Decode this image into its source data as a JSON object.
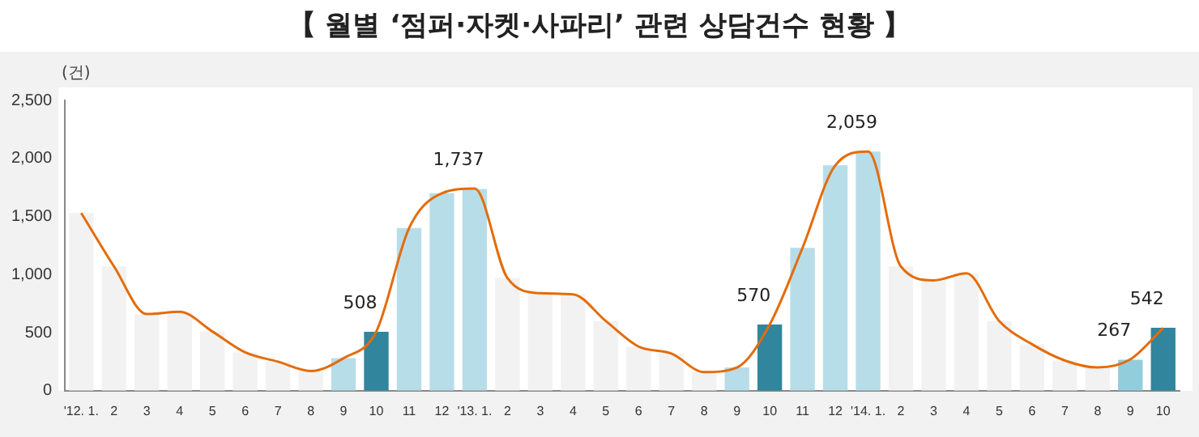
{
  "chart_data": {
    "type": "bar",
    "title": "【 월별 ‘점퍼·자켓·사파리’ 관련 상담건수 현황 】",
    "ylabel": "(건)",
    "categories": [
      "'12. 1.",
      "2",
      "3",
      "4",
      "5",
      "6",
      "7",
      "8",
      "9",
      "10",
      "11",
      "12",
      "'13. 1.",
      "2",
      "3",
      "4",
      "5",
      "6",
      "7",
      "8",
      "9",
      "10",
      "11",
      "12",
      "'14. 1.",
      "2",
      "3",
      "4",
      "5",
      "6",
      "7",
      "8",
      "9",
      "10"
    ],
    "series": [
      {
        "colors": [
          "#f2f2f2",
          "#f2f2f2",
          "#f2f2f2",
          "#f2f2f2",
          "#f2f2f2",
          "#f2f2f2",
          "#f2f2f2",
          "#f2f2f2",
          "#b7dde8",
          "#31859c",
          "#b7dde8",
          "#b7dde8",
          "#b7dde8",
          "#f2f2f2",
          "#f2f2f2",
          "#f2f2f2",
          "#f2f2f2",
          "#f2f2f2",
          "#f2f2f2",
          "#f2f2f2",
          "#b7dde8",
          "#31859c",
          "#b7dde8",
          "#b7dde8",
          "#b7dde8",
          "#f2f2f2",
          "#f2f2f2",
          "#f2f2f2",
          "#f2f2f2",
          "#f2f2f2",
          "#f2f2f2",
          "#f2f2f2",
          "#92cddc",
          "#31859c"
        ],
        "values": [
          1530,
          1070,
          660,
          680,
          510,
          330,
          250,
          170,
          280,
          508,
          1400,
          1700,
          1737,
          970,
          840,
          830,
          600,
          380,
          320,
          160,
          200,
          570,
          1230,
          1940,
          2059,
          1070,
          950,
          1010,
          600,
          400,
          260,
          200,
          267,
          542
        ],
        "value_labels": [
          null,
          null,
          null,
          null,
          null,
          null,
          null,
          null,
          null,
          "508",
          null,
          null,
          "1,737",
          null,
          null,
          null,
          null,
          null,
          null,
          null,
          null,
          "570",
          null,
          null,
          "2,059",
          null,
          null,
          null,
          null,
          null,
          null,
          null,
          "267",
          "542"
        ]
      },
      {
        "type": "line",
        "color": "#e46c0a",
        "values": [
          1530,
          1070,
          660,
          680,
          510,
          330,
          250,
          170,
          280,
          510,
          1400,
          1700,
          1740,
          970,
          840,
          830,
          600,
          380,
          320,
          160,
          200,
          570,
          1230,
          1940,
          2060,
          1070,
          950,
          1010,
          600,
          400,
          260,
          200,
          270,
          540
        ]
      }
    ],
    "ylim": [
      0,
      2500
    ],
    "yticks": [
      0,
      {
        "value": 500,
        "label": "500"
      },
      {
        "value": 1000,
        "label": "1,000"
      },
      {
        "value": 1500,
        "label": "1,500"
      },
      {
        "value": 2000,
        "label": "2,000"
      },
      {
        "value": 2500,
        "label": "2,500"
      }
    ],
    "grid": false,
    "legend": false,
    "marker": "none",
    "line_style": "solid"
  }
}
